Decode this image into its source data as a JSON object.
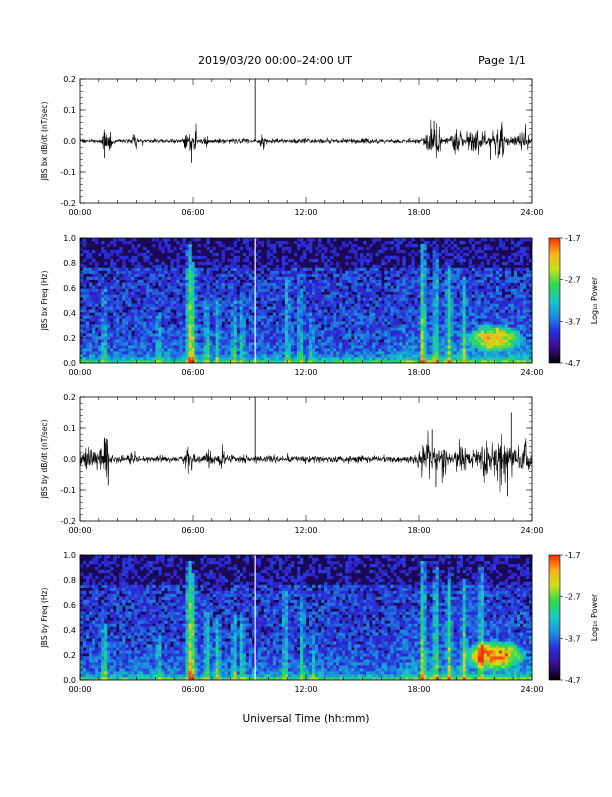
{
  "header": {
    "title": "2019/03/20  00:00–24:00 UT",
    "page": "Page 1/1"
  },
  "xaxis": {
    "label": "Universal Time (hh:mm)",
    "ticks": [
      "00:00",
      "06:00",
      "12:00",
      "18:00",
      "24:00"
    ]
  },
  "colorbar": {
    "label": "Log₁₀ Power",
    "ticks": [
      "-1.7",
      "-2.7",
      "-3.7",
      "-4.7"
    ],
    "range": [
      -4.7,
      -1.7
    ],
    "colors": [
      "#000000",
      "#3b0f8c",
      "#2b2bd9",
      "#1b8fe0",
      "#19c7c7",
      "#2bd94f",
      "#c7e01b",
      "#ffb31b",
      "#ff2b00"
    ]
  },
  "chart_data": [
    {
      "type": "line",
      "ylabel": "JBS bx dB/dt (nT/sec)",
      "xlim": [
        0,
        24
      ],
      "ylim": [
        -0.2,
        0.2
      ],
      "yticks": [
        "0.2",
        "0.1",
        "0.0",
        "-0.1",
        "-0.2"
      ],
      "baseline_noise": 0.007,
      "bursts": [
        {
          "t": 1.3,
          "amp": 0.035,
          "w": 0.12
        },
        {
          "t": 1.6,
          "amp": 0.03,
          "w": 0.1
        },
        {
          "t": 2.9,
          "amp": 0.025,
          "w": 0.1
        },
        {
          "t": 5.6,
          "amp": 0.025,
          "w": 0.1
        },
        {
          "t": 5.9,
          "amp": 0.045,
          "w": 0.1
        },
        {
          "t": 6.1,
          "amp": 0.03,
          "w": 0.08
        },
        {
          "t": 6.7,
          "amp": 0.02,
          "w": 0.08
        },
        {
          "t": 9.7,
          "amp": 0.02,
          "w": 0.12
        },
        {
          "t": 18.6,
          "amp": 0.035,
          "w": 0.25
        },
        {
          "t": 19.0,
          "amp": 0.045,
          "w": 0.15
        },
        {
          "t": 20.0,
          "amp": 0.035,
          "w": 0.3
        },
        {
          "t": 21.0,
          "amp": 0.04,
          "w": 0.4
        },
        {
          "t": 22.3,
          "amp": 0.045,
          "w": 0.35
        },
        {
          "t": 23.5,
          "amp": 0.035,
          "w": 0.3
        }
      ],
      "spikes": [
        {
          "t": 1.3,
          "v": -0.055
        },
        {
          "t": 5.92,
          "v": -0.07
        },
        {
          "t": 9.3,
          "v": 0.2
        },
        {
          "t": 18.8,
          "v": 0.065
        },
        {
          "t": 22.4,
          "v": 0.06
        },
        {
          "t": 21.8,
          "v": -0.06
        }
      ]
    },
    {
      "type": "heatmap",
      "ylabel": "JBS bx Freq (Hz)",
      "xlim": [
        0,
        24
      ],
      "ylim": [
        0,
        1.0
      ],
      "yticks": [
        "1.0",
        "0.8",
        "0.6",
        "0.4",
        "0.2",
        "0.0"
      ],
      "gap_at": 9.3,
      "streaks": [
        {
          "t": 1.3,
          "top": 0.6,
          "s": 0.25
        },
        {
          "t": 4.2,
          "top": 0.4,
          "s": 0.25
        },
        {
          "t": 5.8,
          "top": 0.95,
          "s": 0.6
        },
        {
          "t": 6.0,
          "top": 0.8,
          "s": 0.45
        },
        {
          "t": 6.75,
          "top": 0.5,
          "s": 0.35
        },
        {
          "t": 7.3,
          "top": 0.5,
          "s": 0.3
        },
        {
          "t": 8.2,
          "top": 0.5,
          "s": 0.3
        },
        {
          "t": 8.6,
          "top": 0.5,
          "s": 0.3
        },
        {
          "t": 11.0,
          "top": 0.7,
          "s": 0.3
        },
        {
          "t": 11.7,
          "top": 0.6,
          "s": 0.3
        },
        {
          "t": 12.3,
          "top": 0.4,
          "s": 0.25
        },
        {
          "t": 18.2,
          "top": 0.95,
          "s": 0.55
        },
        {
          "t": 18.9,
          "top": 0.9,
          "s": 0.4
        },
        {
          "t": 19.6,
          "top": 0.8,
          "s": 0.35
        },
        {
          "t": 20.4,
          "top": 0.7,
          "s": 0.35
        }
      ],
      "blob": {
        "t": 22.0,
        "f": 0.2,
        "rt": 1.6,
        "rf": 0.12,
        "s": 0.6
      }
    },
    {
      "type": "line",
      "ylabel": "JBS by dB/dt (nT/sec)",
      "xlim": [
        0,
        24
      ],
      "ylim": [
        -0.2,
        0.2
      ],
      "yticks": [
        "0.2",
        "0.1",
        "0.0",
        "-0.1",
        "-0.2"
      ],
      "baseline_noise": 0.01,
      "bursts": [
        {
          "t": 0.3,
          "amp": 0.02,
          "w": 0.6
        },
        {
          "t": 1.2,
          "amp": 0.035,
          "w": 0.3
        },
        {
          "t": 1.4,
          "amp": 0.04,
          "w": 0.12
        },
        {
          "t": 2.7,
          "amp": 0.02,
          "w": 0.3
        },
        {
          "t": 5.8,
          "amp": 0.03,
          "w": 0.25
        },
        {
          "t": 6.9,
          "amp": 0.02,
          "w": 0.2
        },
        {
          "t": 7.5,
          "amp": 0.02,
          "w": 0.2
        },
        {
          "t": 18.4,
          "amp": 0.04,
          "w": 0.4
        },
        {
          "t": 19.2,
          "amp": 0.045,
          "w": 0.3
        },
        {
          "t": 20.3,
          "amp": 0.04,
          "w": 0.4
        },
        {
          "t": 21.4,
          "amp": 0.04,
          "w": 0.5
        },
        {
          "t": 22.5,
          "amp": 0.055,
          "w": 0.5
        },
        {
          "t": 23.6,
          "amp": 0.045,
          "w": 0.3
        }
      ],
      "spikes": [
        {
          "t": 1.4,
          "v": 0.065
        },
        {
          "t": 1.5,
          "v": -0.085
        },
        {
          "t": 9.3,
          "v": 0.2
        },
        {
          "t": 18.7,
          "v": 0.095
        },
        {
          "t": 18.9,
          "v": -0.09
        },
        {
          "t": 22.9,
          "v": 0.15
        },
        {
          "t": 22.7,
          "v": -0.12
        }
      ]
    },
    {
      "type": "heatmap",
      "ylabel": "JBS by Freq (Hz)",
      "xlim": [
        0,
        24
      ],
      "ylim": [
        0,
        1.0
      ],
      "yticks": [
        "1.0",
        "0.8",
        "0.6",
        "0.4",
        "0.2",
        "0.0"
      ],
      "gap_at": 9.3,
      "streaks": [
        {
          "t": 1.3,
          "top": 0.45,
          "s": 0.4
        },
        {
          "t": 4.2,
          "top": 0.35,
          "s": 0.3
        },
        {
          "t": 5.8,
          "top": 0.95,
          "s": 0.65
        },
        {
          "t": 6.0,
          "top": 0.85,
          "s": 0.5
        },
        {
          "t": 6.75,
          "top": 0.55,
          "s": 0.45
        },
        {
          "t": 7.3,
          "top": 0.5,
          "s": 0.4
        },
        {
          "t": 8.2,
          "top": 0.55,
          "s": 0.35
        },
        {
          "t": 8.6,
          "top": 0.55,
          "s": 0.35
        },
        {
          "t": 10.9,
          "top": 0.75,
          "s": 0.35
        },
        {
          "t": 11.8,
          "top": 0.7,
          "s": 0.3
        },
        {
          "t": 12.4,
          "top": 0.4,
          "s": 0.25
        },
        {
          "t": 18.2,
          "top": 0.95,
          "s": 0.55
        },
        {
          "t": 18.9,
          "top": 0.9,
          "s": 0.45
        },
        {
          "t": 19.6,
          "top": 0.85,
          "s": 0.4
        },
        {
          "t": 20.4,
          "top": 0.8,
          "s": 0.4
        },
        {
          "t": 21.3,
          "top": 0.9,
          "s": 0.45
        }
      ],
      "blob": {
        "t": 22.0,
        "f": 0.2,
        "rt": 1.8,
        "rf": 0.13,
        "s": 0.7
      }
    }
  ]
}
